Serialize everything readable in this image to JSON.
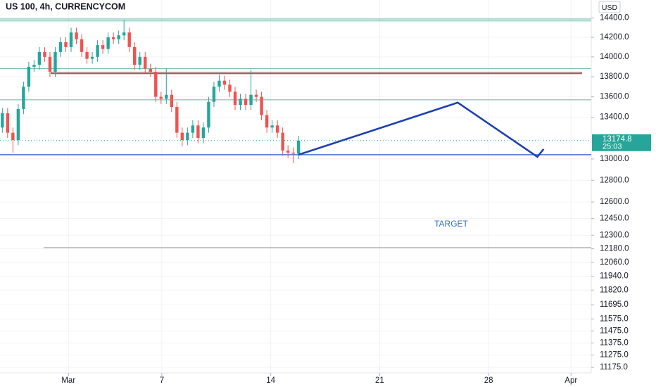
{
  "chart_data": {
    "type": "candlestick",
    "title": "US 100, 4h, CURRENCYCOM",
    "currency": "USD",
    "annotation": "TARGET",
    "countdown": "25:03",
    "log": true,
    "grid": true,
    "up_color": "#26a69a",
    "down_color": "#ef5350",
    "x": [
      -3.25,
      -2.91,
      -2.57,
      -2.23,
      -1.89,
      -1.55,
      -1.21,
      -0.87,
      -0.53,
      -0.19,
      0.15,
      0.49,
      0.83,
      1.17,
      1.51,
      1.85,
      2.19,
      2.53,
      2.87,
      3.21,
      3.55,
      3.89,
      4.23,
      4.57,
      4.91,
      5.25,
      5.59,
      5.93,
      6.27,
      6.61,
      6.95,
      7.29,
      7.63,
      7.97,
      8.31,
      8.65,
      8.99,
      9.33,
      9.67,
      10.01,
      10.35,
      10.69,
      11.03,
      11.37,
      11.71,
      12.05,
      12.39,
      12.73,
      13.07,
      13.41,
      13.75,
      14.09,
      14.43,
      14.77,
      15.11,
      15.45,
      15.79
    ],
    "open": [
      13300,
      13440,
      13250,
      13180,
      13480,
      13700,
      13900,
      13920,
      14050,
      14000,
      13850,
      14050,
      14150,
      14100,
      14250,
      14180,
      14050,
      13980,
      14000,
      14120,
      14080,
      14200,
      14180,
      14220,
      14250,
      14100,
      13920,
      14000,
      13880,
      13850,
      13600,
      13580,
      13620,
      13500,
      13250,
      13180,
      13250,
      13320,
      13200,
      13300,
      13550,
      13700,
      13760,
      13720,
      13650,
      13520,
      13580,
      13520,
      13620,
      13600,
      13420,
      13300,
      13320,
      13250,
      13080,
      13060,
      13050
    ],
    "high": [
      13490,
      13490,
      13300,
      13530,
      13750,
      13950,
      13970,
      14100,
      14100,
      14050,
      14100,
      14200,
      14200,
      14300,
      14300,
      14230,
      14100,
      14050,
      14170,
      14170,
      14250,
      14250,
      14270,
      14380,
      14300,
      14150,
      14050,
      14050,
      13930,
      13900,
      13650,
      13880,
      13670,
      13550,
      13300,
      13300,
      13370,
      13370,
      13350,
      13600,
      13750,
      13820,
      13810,
      13770,
      13700,
      13630,
      13630,
      13870,
      13670,
      13650,
      13470,
      13370,
      13370,
      13300,
      13130,
      13110,
      13220
    ],
    "low": [
      13250,
      13200,
      13060,
      13130,
      13430,
      13650,
      13850,
      13870,
      13950,
      13800,
      13800,
      14000,
      14050,
      14050,
      14130,
      14000,
      13930,
      13930,
      13950,
      14030,
      14030,
      14130,
      14130,
      14170,
      14050,
      13870,
      13870,
      13830,
      13800,
      13550,
      13530,
      13530,
      13450,
      13200,
      13120,
      13130,
      13200,
      13150,
      13150,
      13250,
      13500,
      13650,
      13670,
      13600,
      13470,
      13470,
      13470,
      13470,
      13550,
      13370,
      13250,
      13250,
      13200,
      13030,
      13010,
      12960,
      13000
    ],
    "close": [
      13440,
      13250,
      13180,
      13480,
      13700,
      13900,
      13920,
      14050,
      14000,
      13850,
      14050,
      14150,
      14100,
      14250,
      14180,
      14050,
      13980,
      14000,
      14120,
      14080,
      14200,
      14180,
      14220,
      14250,
      14100,
      13920,
      14000,
      13880,
      13850,
      13600,
      13580,
      13620,
      13500,
      13250,
      13180,
      13250,
      13320,
      13200,
      13300,
      13550,
      13700,
      13760,
      13720,
      13650,
      13520,
      13580,
      13520,
      13620,
      13600,
      13420,
      13300,
      13320,
      13250,
      13080,
      13060,
      13050,
      13174.8
    ],
    "levels": [
      {
        "value": 14390,
        "color": "#5fb8a8"
      },
      {
        "value": 14370,
        "color": "#5fb8a8"
      },
      {
        "value": 13880,
        "color": "#5fb8a8"
      },
      {
        "value": 13570,
        "color": "#5fb8a8"
      },
      {
        "value": 13040,
        "color": "#4a6fd6"
      },
      {
        "value": 12190,
        "color": "#9a9a9a"
      }
    ],
    "zone": [
      13845,
      13830
    ],
    "projection": {
      "x": [
        15.79,
        26.02,
        31.14,
        31.54
      ],
      "values": [
        13040,
        13543,
        13020,
        13094
      ],
      "color": "#1e40af"
    },
    "xlim": [
      -3.4,
      34.6
    ],
    "xticks": [
      {
        "value": 1,
        "label": "Mar"
      },
      7,
      14,
      21,
      28,
      {
        "value": 33.3,
        "label": "Apr"
      }
    ],
    "ylim": [
      11130,
      14590
    ],
    "yticks": [
      {
        "value": 14400,
        "label": "14400.0"
      },
      {
        "value": 14200,
        "label": "14200.0"
      },
      {
        "value": 14000,
        "label": "14000.0"
      },
      {
        "value": 13800,
        "label": "13800.0"
      },
      {
        "value": 13600,
        "label": "13600.0"
      },
      {
        "value": 13400,
        "label": "13400.0"
      },
      {
        "value": 13000,
        "label": "13000.0"
      },
      {
        "value": 12800,
        "label": "12800.0"
      },
      {
        "value": 12600,
        "label": "12600.0"
      },
      {
        "value": 12450,
        "label": "12450.0"
      },
      {
        "value": 12300,
        "label": "12300.0"
      },
      {
        "value": 12180,
        "label": "12180.0"
      },
      {
        "value": 12060,
        "label": "12060.0"
      },
      {
        "value": 11940,
        "label": "11940.0"
      },
      {
        "value": 11820,
        "label": "11820.0"
      },
      {
        "value": 11695,
        "label": "11695.0"
      },
      {
        "value": 11575,
        "label": "11575.0"
      },
      {
        "value": 11475,
        "label": "11475.0"
      },
      {
        "value": 11375,
        "label": "11375.0"
      },
      {
        "value": 11275,
        "label": "11275.0"
      },
      {
        "value": 11175,
        "label": "11175.0"
      }
    ]
  }
}
